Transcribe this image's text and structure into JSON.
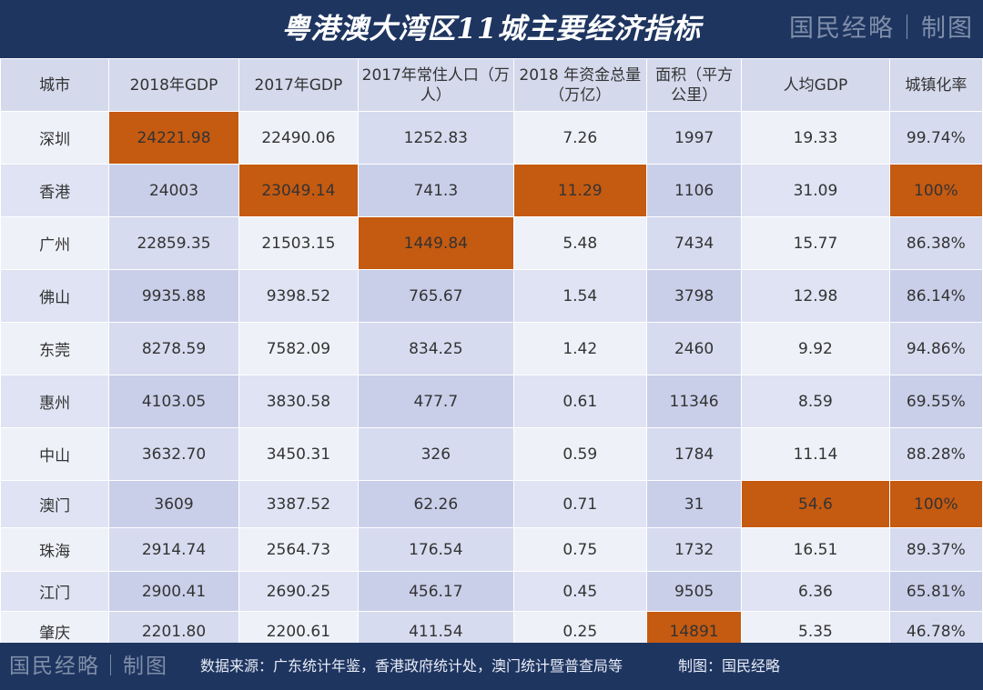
{
  "title": "粤港澳大湾区11城主要经济指标",
  "watermark": "国民经略｜制图",
  "columns": [
    "城市",
    "2018年GDP",
    "2017年GDP",
    "2017年常住人口（万人）",
    "2018 年资金总量（万亿）",
    "面积（平方公里）",
    "人均GDP",
    "城镇化率"
  ],
  "rows": [
    [
      "深圳",
      "24221.98",
      "22490.06",
      "1252.83",
      "7.26",
      "1997",
      "19.33",
      "99.74%"
    ],
    [
      "香港",
      "24003",
      "23049.14",
      "741.3",
      "11.29",
      "1106",
      "31.09",
      "100%"
    ],
    [
      "广州",
      "22859.35",
      "21503.15",
      "1449.84",
      "5.48",
      "7434",
      "15.77",
      "86.38%"
    ],
    [
      "佛山",
      "9935.88",
      "9398.52",
      "765.67",
      "1.54",
      "3798",
      "12.98",
      "86.14%"
    ],
    [
      "东莞",
      "8278.59",
      "7582.09",
      "834.25",
      "1.42",
      "2460",
      "9.92",
      "94.86%"
    ],
    [
      "惠州",
      "4103.05",
      "3830.58",
      "477.7",
      "0.61",
      "11346",
      "8.59",
      "69.55%"
    ],
    [
      "中山",
      "3632.70",
      "3450.31",
      "326",
      "0.59",
      "1784",
      "11.14",
      "88.28%"
    ],
    [
      "澳门",
      "3609",
      "3387.52",
      "62.26",
      "0.71",
      "31",
      "54.6",
      "100%"
    ],
    [
      "珠海",
      "2914.74",
      "2564.73",
      "176.54",
      "0.75",
      "1732",
      "16.51",
      "89.37%"
    ],
    [
      "江门",
      "2900.41",
      "2690.25",
      "456.17",
      "0.45",
      "9505",
      "6.36",
      "65.81%"
    ],
    [
      "肇庆",
      "2201.80",
      "2200.61",
      "411.54",
      "0.25",
      "14891",
      "5.35",
      "46.78%"
    ]
  ],
  "footer": {
    "source": "数据来源：广东统计年鉴，香港政府统计处，澳门统计暨普查局等",
    "credit": "制图：国民经略"
  },
  "colors": {
    "banner": "#1e3560",
    "highlight": "#c55a11",
    "header_cell": "#d4d9ec"
  }
}
